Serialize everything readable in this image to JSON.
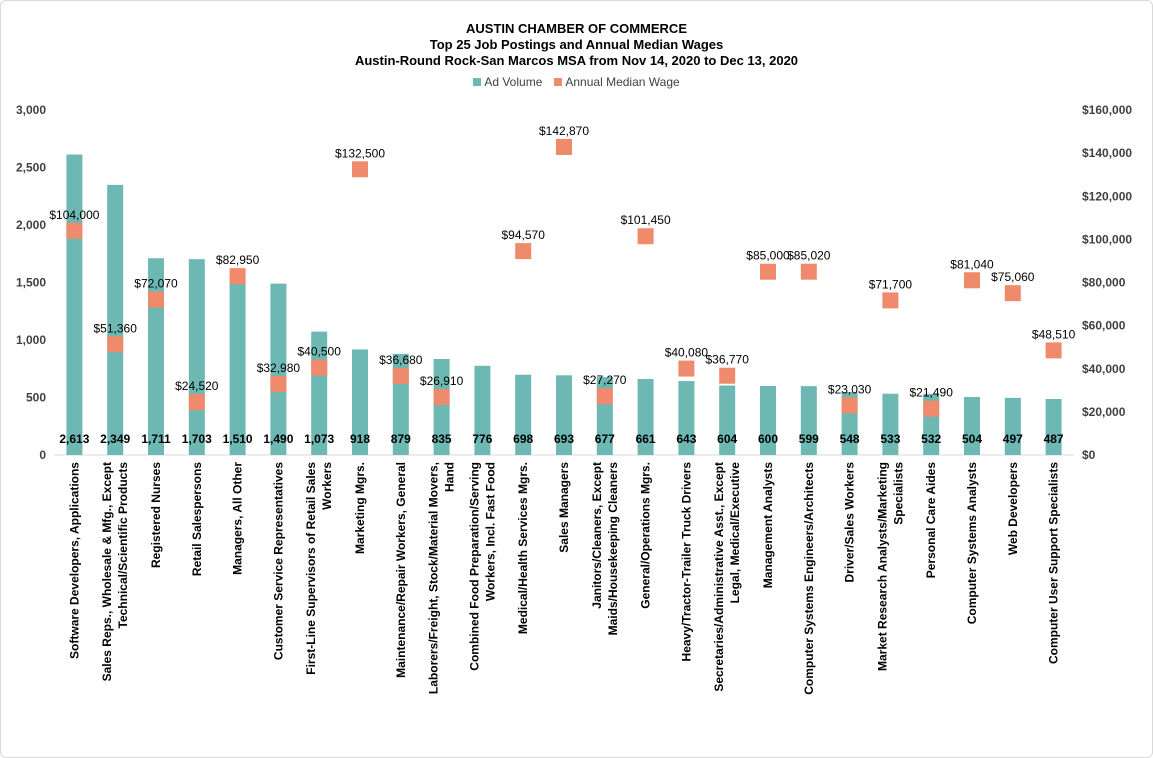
{
  "chart_data": {
    "type": "bar",
    "title": "AUSTIN CHAMBER OF COMMERCE",
    "subtitle_1": "Top 25 Job Postings and Annual Median Wages",
    "subtitle_2": "Austin-Round Rock-San Marcos MSA from Nov 14, 2020 to Dec 13, 2020",
    "legend_position": "top",
    "categories": [
      "Software Developers, Applications",
      "Sales Reps., Wholesale & Mfg., Except Technical/Scientific Products",
      "Registered Nurses",
      "Retail Salespersons",
      "Managers, All Other",
      "Customer Service Representatives",
      "First-Line Supervisors of Retail Sales Workers",
      "Marketing Mgrs.",
      "Maintenance/Repair Workers, General",
      "Laborers/Freight, Stock/Material Movers, Hand",
      "Combined Food Preparation/Serving Workers, Incl. Fast Food",
      "Medical/Health Services Mgrs.",
      "Sales Managers",
      "Janitors/Cleaners, Except Maids/Housekeeping Cleaners",
      "General/Operations Mgrs.",
      "Heavy/Tractor-Trailer Truck Drivers",
      "Secretaries/Administrative Asst., Except Legal, Medical/Executive",
      "Management Analysts",
      "Computer Systems Engineers/Architects",
      "Driver/Sales Workers",
      "Market Research Analysts/Marketing Specialists",
      "Personal Care Aides",
      "Computer Systems Analysts",
      "Web Developers",
      "Computer User Support Specialists"
    ],
    "category_lines": [
      [
        "Software Developers, Applications"
      ],
      [
        "Sales Reps., Wholesale & Mfg., Except",
        "Technical/Scientific Products"
      ],
      [
        "Registered Nurses"
      ],
      [
        "Retail Salespersons"
      ],
      [
        "Managers, All Other"
      ],
      [
        "Customer Service Representatives"
      ],
      [
        "First-Line Supervisors of Retail Sales",
        "Workers"
      ],
      [
        "Marketing Mgrs."
      ],
      [
        "Maintenance/Repair Workers, General"
      ],
      [
        "Laborers/Freight, Stock/Material Movers,",
        "Hand"
      ],
      [
        "Combined Food Preparation/Serving",
        "Workers, Incl. Fast Food"
      ],
      [
        "Medical/Health Services Mgrs."
      ],
      [
        "Sales Managers"
      ],
      [
        "Janitors/Cleaners, Except",
        "Maids/Housekeeping Cleaners"
      ],
      [
        "General/Operations Mgrs."
      ],
      [
        "Heavy/Tractor-Trailer Truck Drivers"
      ],
      [
        "Secretaries/Administrative Asst., Except",
        "Legal, Medical/Executive"
      ],
      [
        "Management Analysts"
      ],
      [
        "Computer Systems Engineers/Architects"
      ],
      [
        "Driver/Sales Workers"
      ],
      [
        "Market Research Analysts/Marketing",
        "Specialists"
      ],
      [
        "Personal Care Aides"
      ],
      [
        "Computer Systems Analysts"
      ],
      [
        "Web Developers"
      ],
      [
        "Computer User Support Specialists"
      ]
    ],
    "series": [
      {
        "name": "Ad Volume",
        "axis": "left",
        "mark": "bar",
        "color": "#6db8b3",
        "values": [
          2613,
          2349,
          1711,
          1703,
          1510,
          1490,
          1073,
          918,
          879,
          835,
          776,
          698,
          693,
          677,
          661,
          643,
          604,
          600,
          599,
          548,
          533,
          532,
          504,
          497,
          487
        ],
        "labels": [
          "2,613",
          "2,349",
          "1,711",
          "1,703",
          "1,510",
          "1,490",
          "1,073",
          "918",
          "879",
          "835",
          "776",
          "698",
          "693",
          "677",
          "661",
          "643",
          "604",
          "600",
          "599",
          "548",
          "533",
          "532",
          "504",
          "497",
          "487"
        ]
      },
      {
        "name": "Annual Median Wage",
        "axis": "right",
        "mark": "square",
        "color": "#f08a6c",
        "values": [
          104000,
          51360,
          72070,
          24520,
          82950,
          32980,
          40500,
          132500,
          36680,
          26910,
          null,
          94570,
          142870,
          27270,
          101450,
          40080,
          36770,
          85000,
          85020,
          23030,
          71700,
          21490,
          81040,
          75060,
          48510
        ],
        "labels": [
          "$104,000",
          "$51,360",
          "$72,070",
          "$24,520",
          "$82,950",
          "$32,980",
          "$40,500",
          "$132,500",
          "$36,680",
          "$26,910",
          "",
          "$94,570",
          "$142,870",
          "$27,270",
          "$101,450",
          "$40,080",
          "$36,770",
          "$85,000",
          "$85,020",
          "$23,030",
          "$71,700",
          "$21,490",
          "$81,040",
          "$75,060",
          "$48,510"
        ]
      }
    ],
    "y_left": {
      "min": 0,
      "max": 3000,
      "ticks": [
        0,
        500,
        1000,
        1500,
        2000,
        2500,
        3000
      ],
      "tick_labels": [
        "0",
        "500",
        "1,000",
        "1,500",
        "2,000",
        "2,500",
        "3,000"
      ]
    },
    "y_right": {
      "min": 0,
      "max": 160000,
      "ticks": [
        0,
        20000,
        40000,
        60000,
        80000,
        100000,
        120000,
        140000,
        160000
      ],
      "tick_labels": [
        "$0",
        "$20,000",
        "$40,000",
        "$60,000",
        "$80,000",
        "$100,000",
        "$120,000",
        "$140,000",
        "$160,000"
      ]
    },
    "grid": false
  }
}
